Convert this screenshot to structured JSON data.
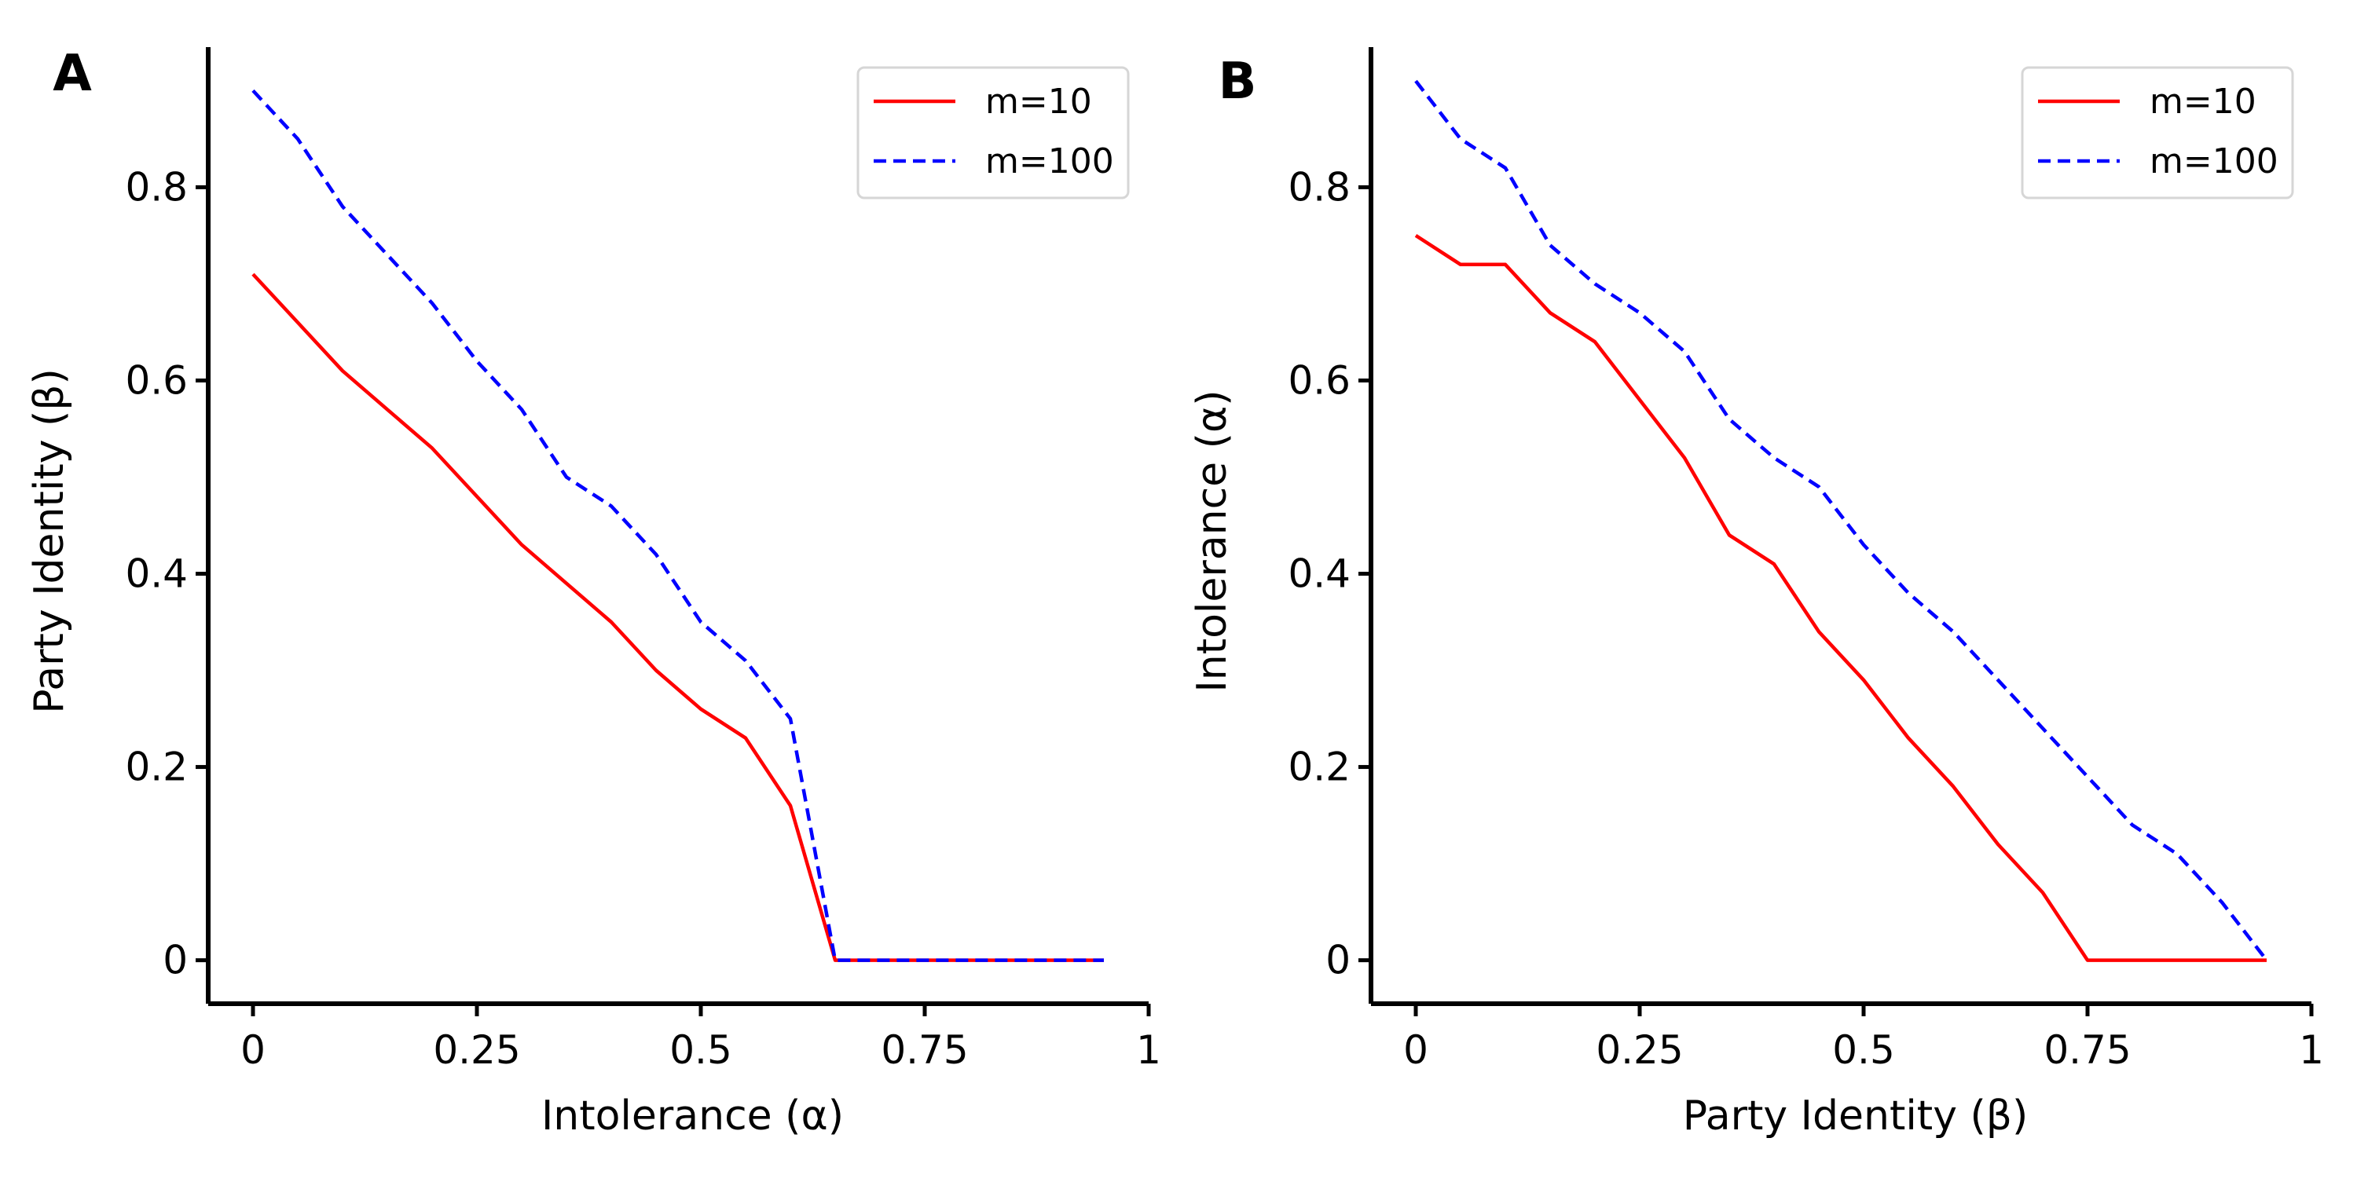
{
  "chart_data": [
    {
      "panel": "A",
      "type": "line",
      "xlabel": "Intolerance (α)",
      "ylabel": "Party Identity (β)",
      "xlim": [
        -0.05,
        1.0
      ],
      "ylim": [
        -0.045,
        0.945
      ],
      "xticks": [
        0,
        0.25,
        0.5,
        0.75,
        1
      ],
      "xtick_labels": [
        "0",
        "0.25",
        "0.5",
        "0.75",
        "1"
      ],
      "yticks": [
        0,
        0.2,
        0.4,
        0.6,
        0.8
      ],
      "ytick_labels": [
        "0",
        "0.2",
        "0.4",
        "0.6",
        "0.8"
      ],
      "legend_position": "top-right",
      "series": [
        {
          "name": "m=10",
          "color": "#ff0000",
          "style": "solid",
          "x": [
            0,
            0.05,
            0.1,
            0.15,
            0.2,
            0.25,
            0.3,
            0.35,
            0.4,
            0.45,
            0.5,
            0.55,
            0.6,
            0.65,
            0.7,
            0.75,
            0.8,
            0.85,
            0.9,
            0.95
          ],
          "y": [
            0.71,
            0.66,
            0.61,
            0.57,
            0.53,
            0.48,
            0.43,
            0.39,
            0.35,
            0.3,
            0.26,
            0.23,
            0.16,
            0,
            0,
            0,
            0,
            0,
            0,
            0
          ]
        },
        {
          "name": "m=100",
          "color": "#0000ff",
          "style": "dashed",
          "x": [
            0,
            0.05,
            0.1,
            0.15,
            0.2,
            0.25,
            0.3,
            0.35,
            0.4,
            0.45,
            0.5,
            0.55,
            0.6,
            0.65,
            0.7,
            0.75,
            0.8,
            0.85,
            0.9,
            0.95
          ],
          "y": [
            0.9,
            0.85,
            0.78,
            0.73,
            0.68,
            0.62,
            0.57,
            0.5,
            0.47,
            0.42,
            0.35,
            0.31,
            0.25,
            0,
            0,
            0,
            0,
            0,
            0,
            0
          ]
        }
      ]
    },
    {
      "panel": "B",
      "type": "line",
      "xlabel": "Party Identity (β)",
      "ylabel": "Intolerance (α)",
      "xlim": [
        -0.05,
        1.0
      ],
      "ylim": [
        -0.045,
        0.945
      ],
      "xticks": [
        0,
        0.25,
        0.5,
        0.75,
        1
      ],
      "xtick_labels": [
        "0",
        "0.25",
        "0.5",
        "0.75",
        "1"
      ],
      "yticks": [
        0,
        0.2,
        0.4,
        0.6,
        0.8
      ],
      "ytick_labels": [
        "0",
        "0.2",
        "0.4",
        "0.6",
        "0.8"
      ],
      "legend_position": "top-right",
      "series": [
        {
          "name": "m=10",
          "color": "#ff0000",
          "style": "solid",
          "x": [
            0,
            0.05,
            0.1,
            0.15,
            0.2,
            0.25,
            0.3,
            0.35,
            0.4,
            0.45,
            0.5,
            0.55,
            0.6,
            0.65,
            0.7,
            0.75,
            0.8,
            0.85,
            0.9,
            0.95
          ],
          "y": [
            0.75,
            0.72,
            0.72,
            0.67,
            0.64,
            0.58,
            0.52,
            0.44,
            0.41,
            0.34,
            0.29,
            0.23,
            0.18,
            0.12,
            0.07,
            0,
            0,
            0,
            0,
            0
          ]
        },
        {
          "name": "m=100",
          "color": "#0000ff",
          "style": "dashed",
          "x": [
            0,
            0.05,
            0.1,
            0.15,
            0.2,
            0.25,
            0.3,
            0.35,
            0.4,
            0.45,
            0.5,
            0.55,
            0.6,
            0.65,
            0.7,
            0.75,
            0.8,
            0.85,
            0.9,
            0.95
          ],
          "y": [
            0.91,
            0.85,
            0.82,
            0.74,
            0.7,
            0.67,
            0.63,
            0.56,
            0.52,
            0.49,
            0.43,
            0.38,
            0.34,
            0.29,
            0.24,
            0.19,
            0.14,
            0.11,
            0.06,
            0
          ]
        }
      ]
    }
  ]
}
